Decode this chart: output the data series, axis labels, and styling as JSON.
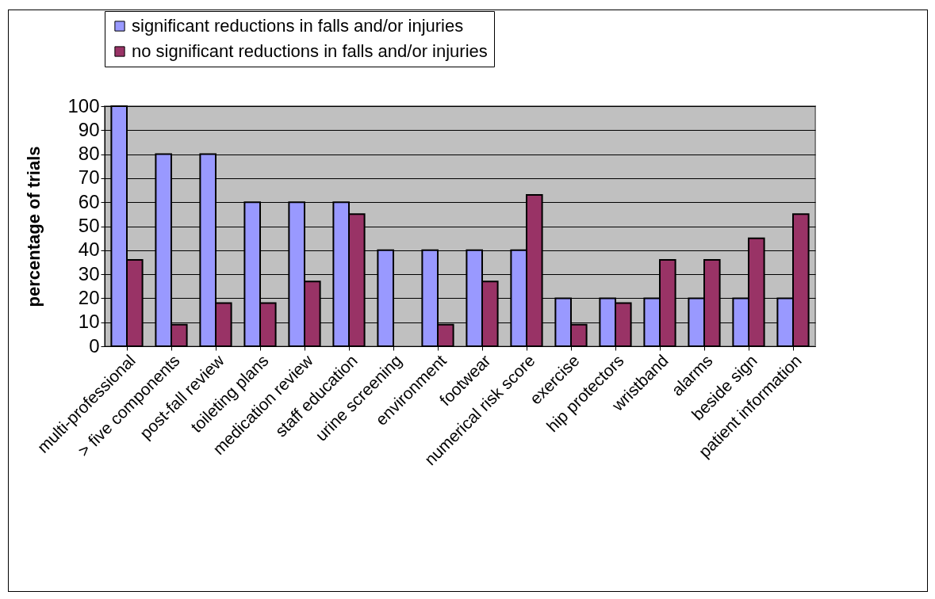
{
  "chart_data": {
    "type": "bar",
    "ylabel": "percentage of trials",
    "categories": [
      "multi-professional",
      "> five components",
      "post-fall review",
      "toileting plans",
      "medication review",
      "staff education",
      "urine screening",
      "environment",
      "footwear",
      "numerical risk score",
      "exercise",
      "hip protectors",
      "wristband",
      "alarms",
      "beside sign",
      "patient information"
    ],
    "series": [
      {
        "name": "significant reductions in falls and/or injuries",
        "color": "#9999ff",
        "values": [
          100,
          80,
          80,
          60,
          60,
          60,
          40,
          40,
          40,
          40,
          20,
          20,
          20,
          20,
          20,
          20
        ]
      },
      {
        "name": "no significant reductions in falls and/or injuries",
        "color": "#993366",
        "values": [
          36,
          9,
          18,
          18,
          27,
          55,
          null,
          9,
          27,
          63,
          9,
          18,
          36,
          36,
          45,
          55
        ]
      }
    ],
    "ylim": [
      0,
      100
    ],
    "yticks": [
      0,
      10,
      20,
      30,
      40,
      50,
      60,
      70,
      80,
      90,
      100
    ],
    "grid": "y",
    "legend": "top"
  }
}
